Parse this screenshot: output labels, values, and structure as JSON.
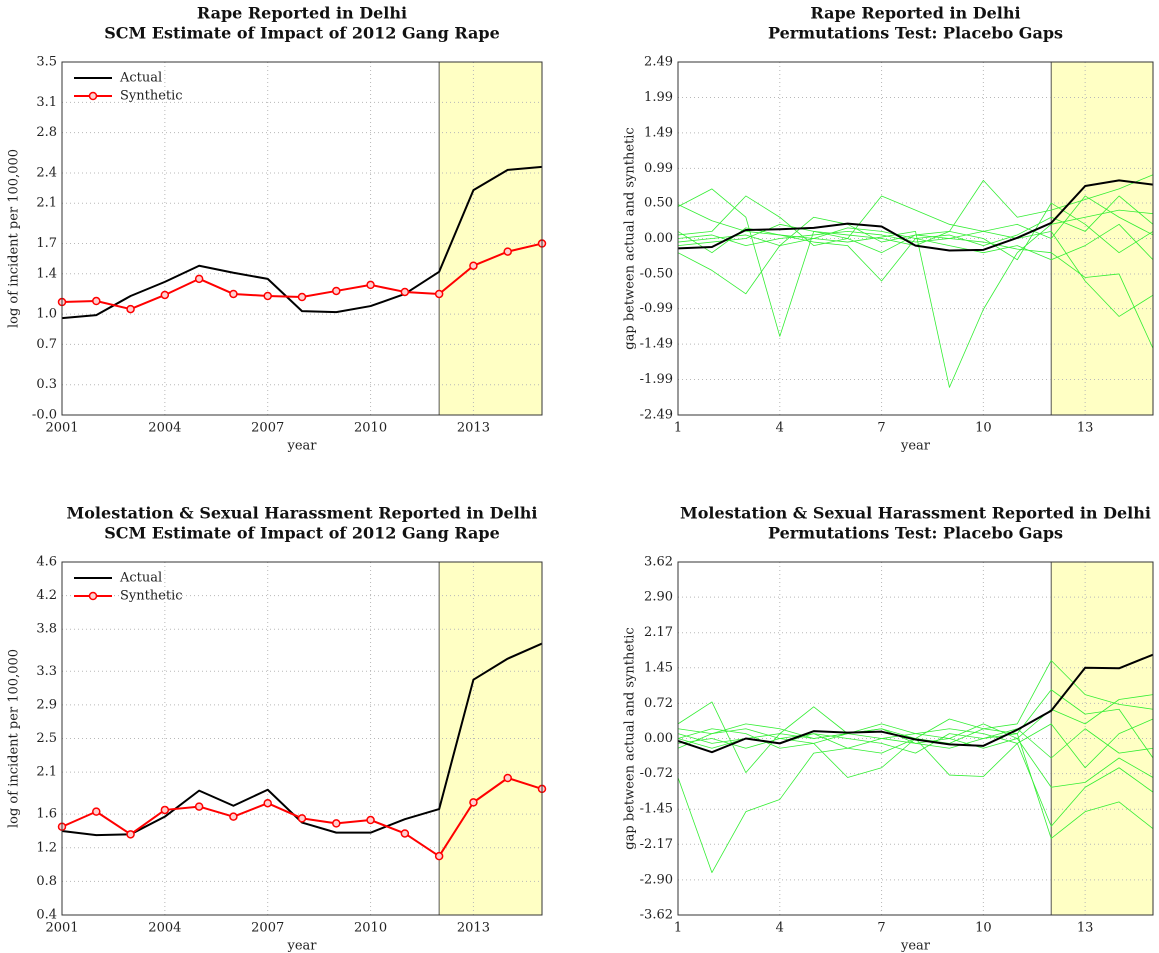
{
  "chart_data": [
    {
      "type": "line",
      "title": "Rape Reported in Delhi",
      "subtitle": "SCM Estimate of Impact of 2012 Gang Rape",
      "x_label": "year",
      "y_label": "log of incident per 100,000",
      "x": [
        2001,
        2002,
        2003,
        2004,
        2005,
        2006,
        2007,
        2008,
        2009,
        2010,
        2011,
        2012,
        2013,
        2014,
        2015
      ],
      "xlim": [
        2001,
        2015
      ],
      "xticks": [
        2001,
        2004,
        2007,
        2010,
        2013
      ],
      "ylim": [
        0,
        3.5
      ],
      "yticks": [
        {
          "value": 0,
          "label": "-0.0"
        },
        0.3,
        0.7,
        {
          "value": 1,
          "label": "1.0"
        },
        1.4,
        1.7,
        2.1,
        2.4,
        2.8,
        3.1,
        3.5
      ],
      "grid": true,
      "legend": "upper left",
      "shade": [
        2012,
        2015
      ],
      "shade_color": "#ffffc4",
      "series": [
        {
          "name": "Actual",
          "color": "#000000",
          "values": [
            0.96,
            0.99,
            1.18,
            1.32,
            1.48,
            1.41,
            1.35,
            1.03,
            1.02,
            1.08,
            1.2,
            1.42,
            2.23,
            2.43,
            2.46
          ]
        },
        {
          "name": "Synthetic",
          "color": "#ff0000",
          "marker": "circle",
          "values": [
            1.12,
            1.13,
            1.05,
            1.19,
            1.35,
            1.2,
            1.18,
            1.17,
            1.23,
            1.29,
            1.22,
            1.2,
            1.48,
            1.62,
            1.7
          ]
        }
      ]
    },
    {
      "type": "line",
      "title": "Rape Reported in Delhi",
      "subtitle": "Permutations Test: Placebo Gaps",
      "x_label": "year",
      "y_label": "gap between actual and synthetic",
      "x": [
        1,
        2,
        3,
        4,
        5,
        6,
        7,
        8,
        9,
        10,
        11,
        12,
        13,
        14,
        15
      ],
      "xlim": [
        1,
        15
      ],
      "xticks": [
        1,
        4,
        7,
        10,
        13
      ],
      "ylim": [
        -2.49,
        2.49
      ],
      "yticks": [
        -2.49,
        -1.99,
        -1.49,
        -0.99,
        {
          "value": -0.5,
          "label": "-0.50"
        },
        {
          "value": 0,
          "label": "0.00"
        },
        {
          "value": 0.5,
          "label": "0.50"
        },
        0.99,
        1.49,
        1.99,
        2.49
      ],
      "grid": true,
      "shade": [
        12,
        15
      ],
      "shade_color": "#ffffc4",
      "placebo_color": "#33ee33",
      "placebo_series": [
        {
          "values": [
            0.48,
            0.25,
            0.1,
            0.05,
            0.0,
            -0.05,
            0.02,
            0.1,
            -2.1,
            -1.0,
            -0.2,
            0.2,
            0.3,
            0.4,
            0.35
          ]
        },
        {
          "values": [
            0.45,
            0.7,
            0.3,
            -1.38,
            0.1,
            0.05,
            0.0,
            -0.1,
            0.1,
            0.82,
            0.3,
            0.4,
            0.55,
            0.7,
            0.9
          ]
        },
        {
          "values": [
            -0.2,
            -0.45,
            -0.78,
            -0.1,
            0.3,
            0.2,
            -0.05,
            0.05,
            0.0,
            -0.05,
            -0.15,
            -0.2,
            -0.55,
            -0.5,
            -1.55
          ]
        },
        {
          "values": [
            0.05,
            0.1,
            0.6,
            0.3,
            -0.1,
            0.0,
            0.6,
            0.4,
            0.2,
            0.1,
            0.0,
            0.1,
            -0.6,
            -1.1,
            -0.8
          ]
        },
        {
          "values": [
            -0.1,
            -0.05,
            0.0,
            0.2,
            0.1,
            0.0,
            -0.2,
            0.05,
            0.1,
            0.0,
            -0.3,
            0.5,
            0.2,
            -0.2,
            0.1
          ]
        },
        {
          "values": [
            0.0,
            0.05,
            -0.1,
            0.0,
            0.05,
            0.1,
            0.05,
            -0.05,
            0.0,
            0.1,
            0.2,
            0.0,
            0.6,
            0.3,
            0.05
          ]
        },
        {
          "values": [
            0.1,
            -0.2,
            0.15,
            0.05,
            -0.05,
            -0.1,
            -0.6,
            0.0,
            -0.1,
            -0.2,
            -0.1,
            -0.3,
            -0.1,
            0.2,
            -0.3
          ]
        },
        {
          "values": [
            -0.05,
            0.0,
            0.05,
            -0.1,
            0.0,
            0.15,
            0.1,
            0.0,
            0.05,
            -0.1,
            0.05,
            0.3,
            0.1,
            0.6,
            0.2
          ]
        }
      ],
      "series": [
        {
          "color": "#000000",
          "values": [
            -0.14,
            -0.12,
            0.12,
            0.13,
            0.15,
            0.21,
            0.17,
            -0.1,
            -0.17,
            -0.16,
            0.01,
            0.22,
            0.74,
            0.82,
            0.76
          ]
        }
      ]
    },
    {
      "type": "line",
      "title": "Molestation & Sexual Harassment Reported in Delhi",
      "subtitle": "SCM Estimate of Impact of 2012 Gang Rape",
      "x_label": "year",
      "y_label": "log of incident per 100,000",
      "x": [
        2001,
        2002,
        2003,
        2004,
        2005,
        2006,
        2007,
        2008,
        2009,
        2010,
        2011,
        2012,
        2013,
        2014,
        2015
      ],
      "xlim": [
        2001,
        2015
      ],
      "xticks": [
        2001,
        2004,
        2007,
        2010,
        2013
      ],
      "ylim": [
        0.4,
        4.6
      ],
      "yticks": [
        0.4,
        0.8,
        1.2,
        1.6,
        2.1,
        2.5,
        2.9,
        3.3,
        3.8,
        4.2,
        4.6
      ],
      "grid": true,
      "legend": "upper left",
      "shade": [
        2012,
        2015
      ],
      "shade_color": "#ffffc4",
      "series": [
        {
          "name": "Actual",
          "color": "#000000",
          "values": [
            1.4,
            1.35,
            1.36,
            1.57,
            1.88,
            1.7,
            1.89,
            1.5,
            1.38,
            1.38,
            1.54,
            1.66,
            3.2,
            3.45,
            3.63
          ]
        },
        {
          "name": "Synthetic",
          "color": "#ff0000",
          "marker": "circle",
          "values": [
            1.45,
            1.63,
            1.36,
            1.65,
            1.69,
            1.57,
            1.73,
            1.55,
            1.49,
            1.53,
            1.37,
            1.1,
            1.74,
            2.03,
            1.9
          ]
        }
      ]
    },
    {
      "type": "line",
      "title": "Molestation & Sexual Harassment Reported in Delhi",
      "subtitle": "Permutations Test: Placebo Gaps",
      "x_label": "year",
      "y_label": "gap between actual and synthetic",
      "x": [
        1,
        2,
        3,
        4,
        5,
        6,
        7,
        8,
        9,
        10,
        11,
        12,
        13,
        14,
        15
      ],
      "xlim": [
        1,
        15
      ],
      "xticks": [
        1,
        4,
        7,
        10,
        13
      ],
      "ylim": [
        -3.62,
        3.62
      ],
      "yticks": [
        -3.62,
        {
          "value": -2.9,
          "label": "-2.90"
        },
        -2.17,
        -1.45,
        -0.72,
        {
          "value": 0,
          "label": "0.00"
        },
        0.72,
        1.45,
        2.17,
        {
          "value": 2.9,
          "label": "2.90"
        },
        3.62
      ],
      "grid": true,
      "shade": [
        12,
        15
      ],
      "shade_color": "#ffffc4",
      "placebo_color": "#33ee33",
      "placebo_series": [
        {
          "values": [
            -0.8,
            -2.75,
            -1.5,
            -1.25,
            -0.3,
            -0.2,
            0.0,
            -0.1,
            -0.2,
            0.0,
            0.1,
            -2.05,
            -1.5,
            -1.3,
            -1.85
          ]
        },
        {
          "values": [
            0.3,
            0.75,
            -0.7,
            0.1,
            0.65,
            0.1,
            0.2,
            0.0,
            0.4,
            0.2,
            0.3,
            1.6,
            0.9,
            0.7,
            0.6
          ]
        },
        {
          "values": [
            0.0,
            0.2,
            0.1,
            -0.2,
            -0.1,
            -0.8,
            -0.6,
            0.0,
            -0.75,
            -0.78,
            -0.1,
            -1.8,
            -1.0,
            -0.6,
            -1.1
          ]
        },
        {
          "values": [
            0.1,
            -0.1,
            0.0,
            0.1,
            0.0,
            0.1,
            0.3,
            0.1,
            0.0,
            0.3,
            0.0,
            0.6,
            0.3,
            0.8,
            0.9
          ]
        },
        {
          "values": [
            -0.1,
            0.0,
            -0.2,
            0.0,
            0.1,
            0.0,
            -0.1,
            -0.3,
            0.1,
            0.0,
            0.2,
            -0.4,
            0.2,
            -0.3,
            -0.2
          ]
        },
        {
          "values": [
            0.2,
            0.1,
            0.3,
            0.2,
            0.0,
            0.1,
            0.0,
            0.1,
            0.2,
            0.1,
            -0.1,
            0.3,
            -0.6,
            0.1,
            0.4
          ]
        },
        {
          "values": [
            0.0,
            -0.2,
            0.0,
            -0.1,
            0.1,
            -0.2,
            -0.3,
            0.0,
            -0.1,
            0.2,
            0.1,
            1.0,
            0.5,
            0.6,
            -0.4
          ]
        },
        {
          "values": [
            -0.2,
            0.1,
            0.2,
            0.0,
            -0.1,
            0.1,
            0.2,
            -0.1,
            0.0,
            -0.2,
            0.0,
            -1.0,
            -0.9,
            -0.4,
            -0.8
          ]
        }
      ],
      "series": [
        {
          "color": "#000000",
          "values": [
            -0.05,
            -0.28,
            0.0,
            -0.1,
            0.15,
            0.12,
            0.14,
            -0.02,
            -0.12,
            -0.15,
            0.18,
            0.57,
            1.45,
            1.44,
            1.72
          ]
        }
      ]
    }
  ]
}
